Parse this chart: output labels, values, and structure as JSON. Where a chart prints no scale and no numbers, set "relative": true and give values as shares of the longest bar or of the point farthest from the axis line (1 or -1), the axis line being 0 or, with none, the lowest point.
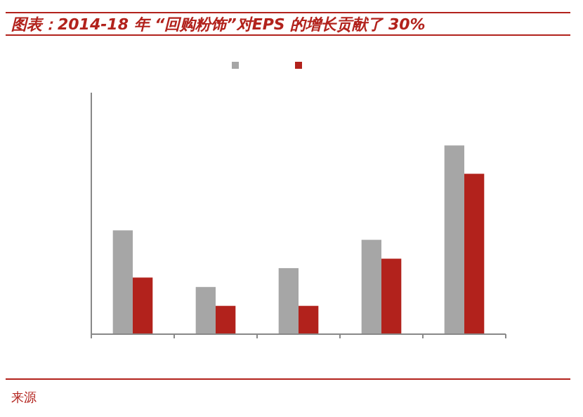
{
  "chart_data": {
    "type": "bar",
    "title": "图表：2014-18 年 “回购粉饰”对EPS 的增长贡献了 30%",
    "relative": true,
    "categories": [
      null,
      null,
      null,
      null,
      null
    ],
    "series": [
      {
        "color": "#a6a6a6",
        "values": [
          0.55,
          0.25,
          0.35,
          0.5,
          1.0
        ]
      },
      {
        "color": "#b2221c",
        "values": [
          0.3,
          0.15,
          0.15,
          0.4,
          0.85
        ]
      }
    ],
    "annotations": [
      "来源"
    ]
  }
}
